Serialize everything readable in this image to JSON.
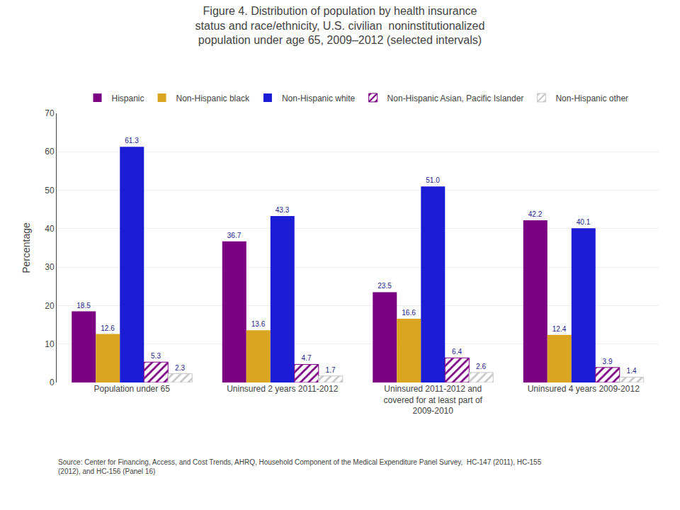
{
  "chart_data": {
    "type": "bar",
    "title": "Figure 4. Distribution of population by health insurance\nstatus and race/ethnicity, U.S. civilian  noninstitutionalized\npopulation under age 65, 2009–2012 (selected intervals)",
    "ylabel": "Percentage",
    "annotations": [
      "Source: Center for Financing, Access, and Cost Trends, AHRQ, Household Component of the Medical Expenditure Panel Survey,  HC-147 (2011), HC-155\n(2012), and HC-156 (Panel 16)"
    ],
    "categories": [
      "Population under 65",
      "Uninsured 2 years 2011-2012",
      "Uninsured 2011-2012 and\ncovered for at least part of\n2009-2010",
      "Uninsured 4 years 2009-2012"
    ],
    "series": [
      {
        "name": "Hispanic",
        "color": "#7B0082",
        "values": [
          18.5,
          36.7,
          23.5,
          42.2
        ]
      },
      {
        "name": "Non-Hispanic black",
        "color": "#DAA520",
        "values": [
          12.6,
          13.6,
          16.6,
          12.4
        ]
      },
      {
        "name": "Non-Hispanic white",
        "color": "#1C1CD4",
        "values": [
          61.3,
          43.3,
          51.0,
          40.1
        ],
        "value_labels": [
          "61.3",
          "43.3",
          "51.0",
          "40.1"
        ]
      },
      {
        "name": "Non-Hispanic Asian, Pacific Islander",
        "color": "#7B0082",
        "marker": "hatched",
        "values": [
          5.3,
          4.7,
          6.4,
          3.9
        ]
      },
      {
        "name": "Non-Hispanic other",
        "color": "#C8C8C8",
        "marker": "hatched",
        "values": [
          2.3,
          1.7,
          2.6,
          1.4
        ]
      }
    ],
    "ylim": [
      0,
      70
    ],
    "yticks": [
      0,
      10,
      20,
      30,
      40,
      50,
      60,
      70
    ],
    "grid": true,
    "legend": "top",
    "data_labels": true
  }
}
